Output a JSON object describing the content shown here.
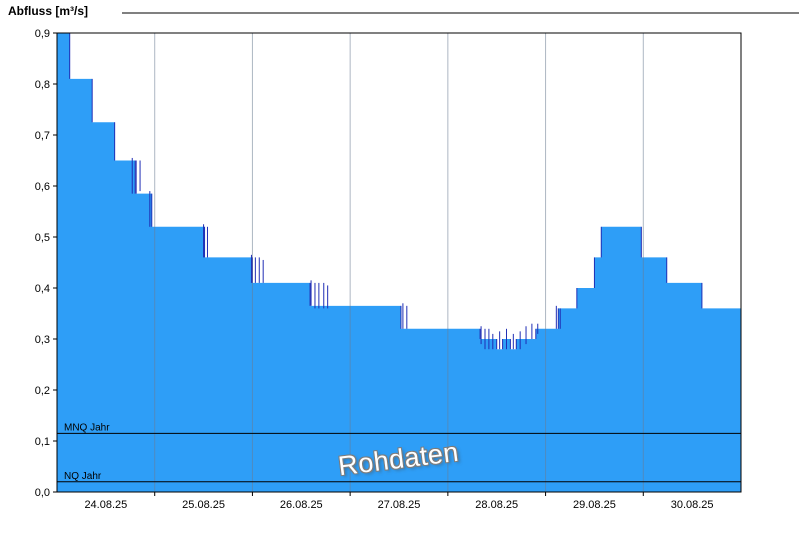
{
  "page": {
    "background": "#ffffff"
  },
  "chart_data": {
    "type": "area",
    "title": "Abfluss [m³/s]",
    "watermark": "Rohdaten",
    "legend_position": "none",
    "grid": "vertical-day-lines",
    "colors": {
      "fill": "#2e9ef7",
      "edge": "#1f2db4",
      "grid": "#6a7b92",
      "axis": "#000000",
      "reference": "#000000",
      "text": "#000000"
    },
    "x_axis": {
      "days_span": 7,
      "tick_labels": [
        "24.08.25",
        "25.08.25",
        "26.08.25",
        "27.08.25",
        "28.08.25",
        "29.08.25",
        "30.08.25"
      ]
    },
    "y_axis": {
      "min": 0.0,
      "max": 0.9,
      "step": 0.1,
      "tick_labels": [
        "0,0",
        "0,1",
        "0,2",
        "0,3",
        "0,4",
        "0,5",
        "0,6",
        "0,7",
        "0,8",
        "0,9"
      ]
    },
    "series": {
      "name": "Rohdaten",
      "unit": "m³/s",
      "steps": [
        [
          0.0,
          0.9
        ],
        [
          0.13,
          0.81
        ],
        [
          0.36,
          0.725
        ],
        [
          0.59,
          0.65
        ],
        [
          0.8,
          0.585
        ],
        [
          0.97,
          0.52
        ],
        [
          1.51,
          0.46
        ],
        [
          2.0,
          0.41
        ],
        [
          2.59,
          0.365
        ],
        [
          3.52,
          0.32
        ],
        [
          4.33,
          0.3
        ],
        [
          4.5,
          0.28
        ],
        [
          4.56,
          0.3
        ],
        [
          4.64,
          0.28
        ],
        [
          4.7,
          0.3
        ],
        [
          4.9,
          0.32
        ],
        [
          5.13,
          0.36
        ],
        [
          5.32,
          0.4
        ],
        [
          5.5,
          0.46
        ],
        [
          5.57,
          0.52
        ],
        [
          5.98,
          0.46
        ],
        [
          6.24,
          0.41
        ],
        [
          6.6,
          0.36
        ]
      ]
    },
    "noise_marks": [
      [
        0.77,
        0.585,
        0.655
      ],
      [
        0.81,
        0.585,
        0.65
      ],
      [
        0.85,
        0.59,
        0.65
      ],
      [
        0.95,
        0.52,
        0.59
      ],
      [
        1.5,
        0.46,
        0.525
      ],
      [
        1.54,
        0.46,
        0.52
      ],
      [
        1.99,
        0.41,
        0.465
      ],
      [
        2.03,
        0.41,
        0.46
      ],
      [
        2.07,
        0.41,
        0.46
      ],
      [
        2.11,
        0.41,
        0.455
      ],
      [
        2.6,
        0.365,
        0.415
      ],
      [
        2.64,
        0.36,
        0.41
      ],
      [
        2.68,
        0.36,
        0.41
      ],
      [
        2.73,
        0.36,
        0.41
      ],
      [
        2.77,
        0.36,
        0.405
      ],
      [
        3.54,
        0.32,
        0.37
      ],
      [
        3.58,
        0.32,
        0.365
      ],
      [
        4.34,
        0.29,
        0.325
      ],
      [
        4.38,
        0.28,
        0.32
      ],
      [
        4.42,
        0.28,
        0.32
      ],
      [
        4.46,
        0.28,
        0.31
      ],
      [
        4.53,
        0.28,
        0.315
      ],
      [
        4.6,
        0.28,
        0.32
      ],
      [
        4.67,
        0.28,
        0.31
      ],
      [
        4.74,
        0.28,
        0.315
      ],
      [
        4.8,
        0.29,
        0.325
      ],
      [
        4.86,
        0.3,
        0.33
      ],
      [
        4.92,
        0.31,
        0.33
      ],
      [
        5.11,
        0.32,
        0.365
      ],
      [
        5.15,
        0.32,
        0.36
      ]
    ],
    "reference_lines": [
      {
        "label": "MNQ Jahr",
        "value": 0.115
      },
      {
        "label": "NQ Jahr",
        "value": 0.02
      }
    ]
  }
}
